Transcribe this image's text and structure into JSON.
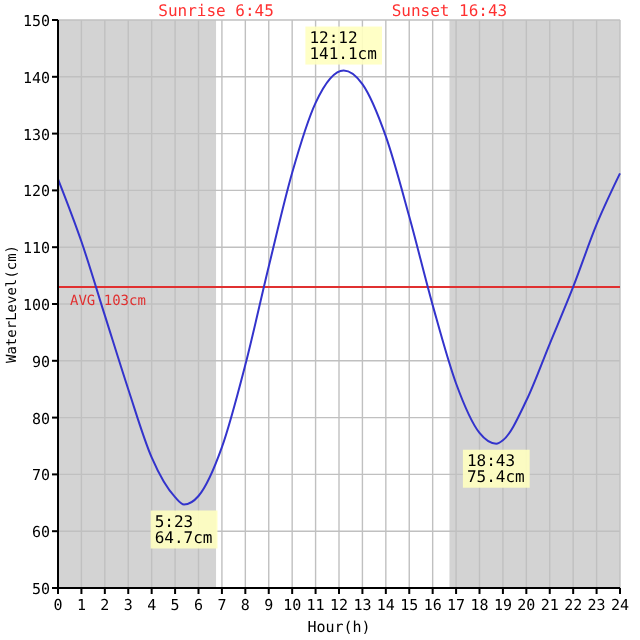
{
  "chart_data": {
    "type": "line",
    "xlabel": "Hour(h)",
    "ylabel": "WaterLevel(cm)",
    "xlim": [
      0,
      24
    ],
    "xticks": [
      0,
      1,
      2,
      3,
      4,
      5,
      6,
      7,
      8,
      9,
      10,
      11,
      12,
      13,
      14,
      15,
      16,
      17,
      18,
      19,
      20,
      21,
      22,
      23,
      24
    ],
    "ylim": [
      50,
      150
    ],
    "yticks": [
      50,
      60,
      70,
      80,
      90,
      100,
      110,
      120,
      130,
      140,
      150
    ],
    "grid": true,
    "marker": "none",
    "line_style": "solid",
    "series": [
      {
        "color": "#3333cc",
        "x": [
          0,
          1,
          2,
          3,
          4,
          5,
          5.383,
          6,
          7,
          8,
          9,
          10,
          11,
          12.2,
          13,
          14,
          15,
          16,
          17,
          18,
          18.717,
          19,
          20,
          21,
          22,
          23,
          24
        ],
        "values": [
          122,
          111,
          98,
          85,
          73,
          66,
          64.7,
          66.2,
          74.8,
          89.3,
          106.6,
          123.1,
          135.4,
          141.1,
          138.7,
          129.5,
          115.4,
          99.8,
          86,
          77.3,
          75.4,
          76,
          83,
          93,
          103,
          114,
          123
        ]
      }
    ],
    "bands": [
      {
        "axis": "x",
        "from": 0,
        "to": 6.75,
        "label": "Sunrise 6:45",
        "color": "#d3d3d3"
      },
      {
        "axis": "x",
        "from": 16.717,
        "to": 24,
        "label": "Sunset 16:43",
        "color": "#d3d3d3"
      }
    ],
    "ref_lines": [
      {
        "axis": "y",
        "value": 103,
        "label": "AVG 103cm",
        "color": "#e03030"
      }
    ],
    "annotations": [
      {
        "text": "5:23\n64.7cm",
        "x": 5.383,
        "y": 64.7
      },
      {
        "text": "12:12\n141.1cm",
        "x": 12.2,
        "y": 141.1
      },
      {
        "text": "18:43\n75.4cm",
        "x": 18.717,
        "y": 75.4
      }
    ]
  }
}
